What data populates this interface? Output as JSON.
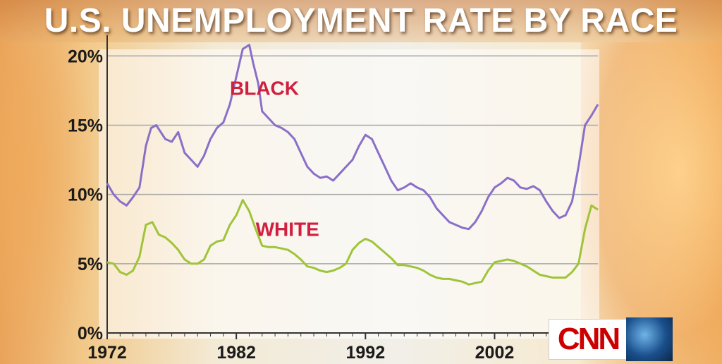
{
  "title": "U.S. UNEMPLOYMENT RATE BY RACE",
  "logo": {
    "text": "CNN"
  },
  "colors": {
    "black_series": "#8a6fc8",
    "white_series": "#9fc43a",
    "series_label": "#d11f3f",
    "grid": "#a8a8a8"
  },
  "chart_data": {
    "type": "line",
    "title": "U.S. UNEMPLOYMENT RATE BY RACE",
    "xlim": [
      1972,
      2010
    ],
    "ylim": [
      0,
      22
    ],
    "x_ticks": [
      1972,
      1982,
      1992,
      2002
    ],
    "x_tick_labels": [
      "1972",
      "1982",
      "1992",
      "2002"
    ],
    "y_ticks": [
      0,
      5,
      10,
      15,
      20
    ],
    "y_tick_labels": [
      "0%",
      "5%",
      "10%",
      "15%",
      "20%"
    ],
    "grid": true,
    "series": [
      {
        "name": "BLACK",
        "color": "#8a6fc8",
        "x": [
          1972,
          1972.5,
          1973,
          1973.5,
          1974,
          1974.5,
          1975,
          1975.4,
          1975.8,
          1976.5,
          1977,
          1977.5,
          1978,
          1978.5,
          1979,
          1979.5,
          1980,
          1980.5,
          1981,
          1981.5,
          1982,
          1982.5,
          1983,
          1983.3,
          1983.7,
          1984,
          1984.5,
          1985,
          1985.5,
          1986,
          1986.5,
          1987,
          1987.5,
          1988,
          1988.5,
          1989,
          1989.5,
          1990,
          1990.5,
          1991,
          1991.5,
          1992,
          1992.5,
          1993,
          1993.5,
          1994,
          1994.5,
          1995,
          1995.5,
          1996,
          1996.5,
          1997,
          1997.5,
          1998,
          1998.5,
          1999,
          1999.5,
          2000,
          2000.5,
          2001,
          2001.5,
          2002,
          2002.5,
          2003,
          2003.5,
          2004,
          2004.5,
          2005,
          2005.5,
          2006,
          2006.5,
          2007,
          2007.5,
          2008,
          2008.5,
          2009,
          2009.5,
          2010
        ],
        "values": [
          10.8,
          10.0,
          9.5,
          9.2,
          9.8,
          10.5,
          13.5,
          14.8,
          15.0,
          14.0,
          13.8,
          14.5,
          13.0,
          12.5,
          12.0,
          12.8,
          14.0,
          14.8,
          15.2,
          16.5,
          18.5,
          20.5,
          20.8,
          19.5,
          18.0,
          16.0,
          15.5,
          15.0,
          14.8,
          14.5,
          14.0,
          13.0,
          12.0,
          11.5,
          11.2,
          11.3,
          11.0,
          11.5,
          12.0,
          12.5,
          13.5,
          14.3,
          14.0,
          13.0,
          12.0,
          11.0,
          10.3,
          10.5,
          10.8,
          10.5,
          10.3,
          9.8,
          9.0,
          8.5,
          8.0,
          7.8,
          7.6,
          7.5,
          8.0,
          8.8,
          9.8,
          10.5,
          10.8,
          11.2,
          11.0,
          10.5,
          10.4,
          10.6,
          10.3,
          9.5,
          8.8,
          8.3,
          8.5,
          9.5,
          12.0,
          15.0,
          15.7,
          16.5
        ]
      },
      {
        "name": "WHITE",
        "color": "#9fc43a",
        "x": [
          1972,
          1972.5,
          1973,
          1973.5,
          1974,
          1974.5,
          1975,
          1975.5,
          1976,
          1976.5,
          1977,
          1977.5,
          1978,
          1978.5,
          1979,
          1979.5,
          1980,
          1980.5,
          1981,
          1981.5,
          1982,
          1982.5,
          1983,
          1983.5,
          1984,
          1984.5,
          1985,
          1985.5,
          1986,
          1986.5,
          1987,
          1987.5,
          1988,
          1988.5,
          1989,
          1989.5,
          1990,
          1990.5,
          1991,
          1991.5,
          1992,
          1992.5,
          1993,
          1993.5,
          1994,
          1994.5,
          1995,
          1995.5,
          1996,
          1996.5,
          1997,
          1997.5,
          1998,
          1998.5,
          1999,
          1999.5,
          2000,
          2000.5,
          2001,
          2001.5,
          2002,
          2002.5,
          2003,
          2003.5,
          2004,
          2004.5,
          2005,
          2005.5,
          2006,
          2006.5,
          2007,
          2007.5,
          2008,
          2008.5,
          2009,
          2009.5,
          2010
        ],
        "values": [
          5.1,
          5.0,
          4.4,
          4.2,
          4.5,
          5.5,
          7.8,
          8.0,
          7.1,
          6.9,
          6.5,
          6.0,
          5.3,
          5.0,
          5.0,
          5.3,
          6.3,
          6.6,
          6.7,
          7.8,
          8.5,
          9.6,
          8.8,
          7.5,
          6.3,
          6.2,
          6.2,
          6.1,
          6.0,
          5.7,
          5.3,
          4.8,
          4.7,
          4.5,
          4.4,
          4.5,
          4.7,
          5.0,
          6.0,
          6.5,
          6.8,
          6.6,
          6.2,
          5.8,
          5.4,
          4.9,
          4.9,
          4.8,
          4.7,
          4.5,
          4.2,
          4.0,
          3.9,
          3.9,
          3.8,
          3.7,
          3.5,
          3.6,
          3.7,
          4.5,
          5.1,
          5.2,
          5.3,
          5.2,
          5.0,
          4.8,
          4.5,
          4.2,
          4.1,
          4.0,
          4.0,
          4.0,
          4.4,
          5.0,
          7.5,
          9.2,
          8.9
        ]
      }
    ]
  }
}
